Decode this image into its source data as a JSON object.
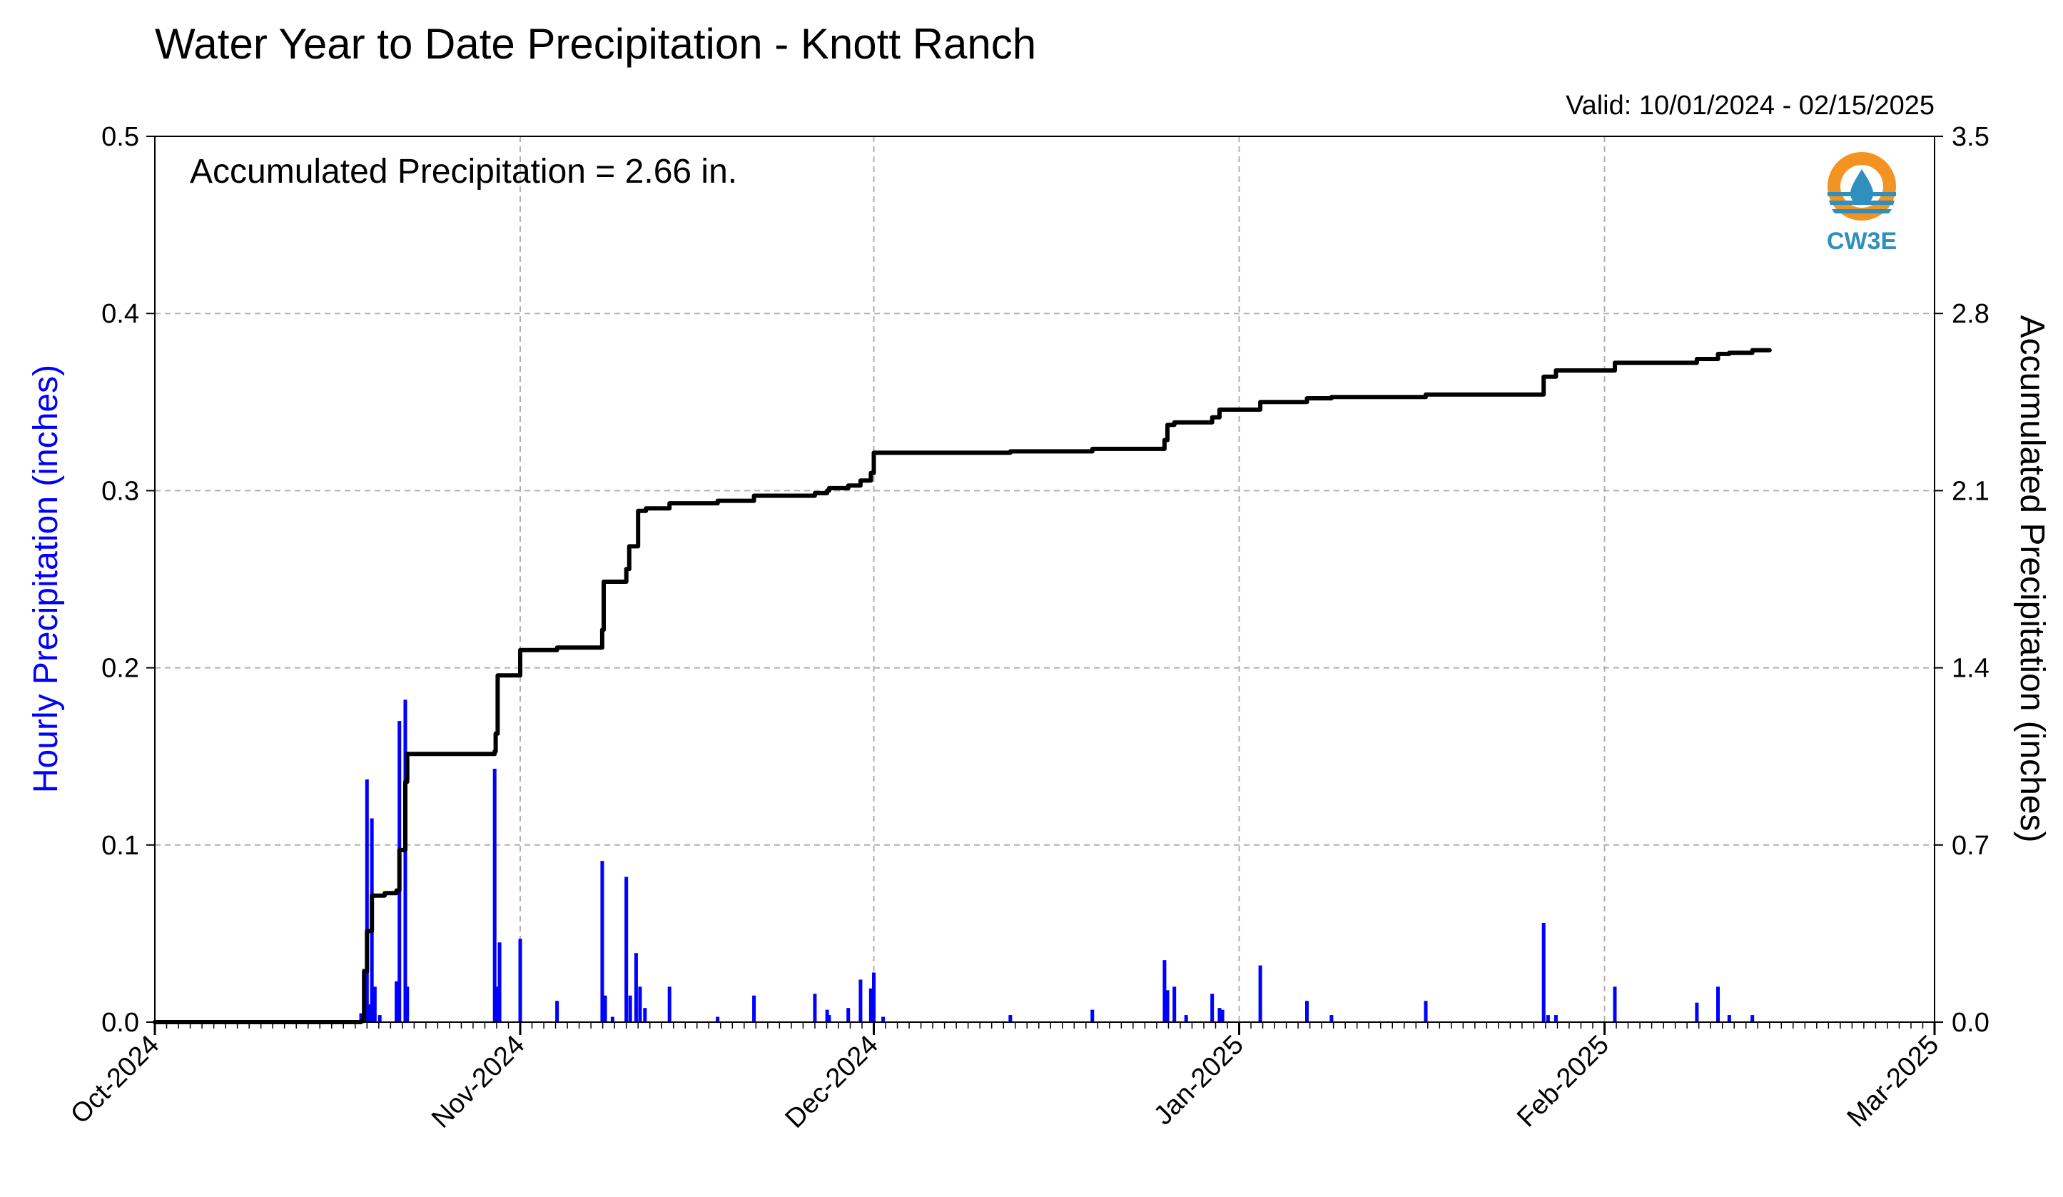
{
  "chart_data": {
    "type": "bar+line",
    "title": "Water Year to Date Precipitation - Knott Ranch",
    "subtitle": "Valid: 10/01/2024 - 02/15/2025",
    "annotation": "Accumulated Precipitation = 2.66 in.",
    "logo_text": "CW3E",
    "ylabel_left": "Hourly Precipitation (inches)",
    "ylabel_right": "Accumulated Precipitation (inches)",
    "xlim": [
      "2024-10-01",
      "2025-03-01"
    ],
    "ylim_left": [
      0,
      0.5
    ],
    "ylim_right": [
      0,
      3.5
    ],
    "yticks_left": [
      "0.0",
      "0.1",
      "0.2",
      "0.3",
      "0.4",
      "0.5"
    ],
    "yticks_right": [
      "0.0",
      "0.7",
      "1.4",
      "2.1",
      "2.8",
      "3.5"
    ],
    "xtick_labels": [
      {
        "date": "2024-10-01",
        "label": "Oct-2024"
      },
      {
        "date": "2024-11-01",
        "label": "Nov-2024"
      },
      {
        "date": "2024-12-01",
        "label": "Dec-2024"
      },
      {
        "date": "2025-01-01",
        "label": "Jan-2025"
      },
      {
        "date": "2025-02-01",
        "label": "Feb-2025"
      },
      {
        "date": "2025-03-01",
        "label": "Mar-2025"
      }
    ],
    "grid": true,
    "colors": {
      "hourly": "#0000ff",
      "accumulated": "#000000",
      "grid": "#b0b0b0",
      "logo_orange": "#f39321",
      "logo_blue": "#2f8fbd"
    },
    "series": [
      {
        "type": "bar",
        "axis": "left",
        "points": [
          [
            "2024-10-18T12:00",
            0.005
          ],
          [
            "2024-10-18T18:00",
            0.03
          ],
          [
            "2024-10-19T00:00",
            0.137
          ],
          [
            "2024-10-19T06:00",
            0.01
          ],
          [
            "2024-10-19T10:00",
            0.115
          ],
          [
            "2024-10-19T16:00",
            0.02
          ],
          [
            "2024-10-20T02:00",
            0.004
          ],
          [
            "2024-10-21T12:00",
            0.023
          ],
          [
            "2024-10-21T18:00",
            0.17
          ],
          [
            "2024-10-22T06:00",
            0.182
          ],
          [
            "2024-10-22T10:00",
            0.02
          ],
          [
            "2024-10-29T20:00",
            0.143
          ],
          [
            "2024-10-30T02:00",
            0.02
          ],
          [
            "2024-10-30T06:00",
            0.045
          ],
          [
            "2024-11-01T00:00",
            0.047
          ],
          [
            "2024-11-04T03:00",
            0.012
          ],
          [
            "2024-11-07T23:00",
            0.091
          ],
          [
            "2024-11-08T05:00",
            0.015
          ],
          [
            "2024-11-08T20:00",
            0.003
          ],
          [
            "2024-11-10T00:00",
            0.082
          ],
          [
            "2024-11-10T08:00",
            0.015
          ],
          [
            "2024-11-10T20:00",
            0.039
          ],
          [
            "2024-11-11T04:00",
            0.02
          ],
          [
            "2024-11-11T14:00",
            0.008
          ],
          [
            "2024-11-13T16:00",
            0.02
          ],
          [
            "2024-11-17T18:00",
            0.003
          ],
          [
            "2024-11-20T20:00",
            0.015
          ],
          [
            "2024-11-26T00:00",
            0.016
          ],
          [
            "2024-11-27T01:00",
            0.007
          ],
          [
            "2024-11-27T05:00",
            0.004
          ],
          [
            "2024-11-28T20:00",
            0.008
          ],
          [
            "2024-11-29T21:00",
            0.024
          ],
          [
            "2024-11-30T18:00",
            0.019
          ],
          [
            "2024-12-01T00:00",
            0.028
          ],
          [
            "2024-12-01T19:00",
            0.003
          ],
          [
            "2024-12-12T14:00",
            0.004
          ],
          [
            "2024-12-19T13:00",
            0.007
          ],
          [
            "2024-12-25T16:00",
            0.035
          ],
          [
            "2024-12-25T22:00",
            0.018
          ],
          [
            "2024-12-26T12:00",
            0.02
          ],
          [
            "2024-12-27T12:00",
            0.004
          ],
          [
            "2024-12-29T17:00",
            0.016
          ],
          [
            "2024-12-30T08:00",
            0.008
          ],
          [
            "2024-12-30T14:00",
            0.007
          ],
          [
            "2025-01-02T19:00",
            0.032
          ],
          [
            "2025-01-06T18:00",
            0.012
          ],
          [
            "2025-01-08T20:00",
            0.004
          ],
          [
            "2025-01-16T20:00",
            0.012
          ],
          [
            "2025-01-26T20:00",
            0.056
          ],
          [
            "2025-01-27T05:00",
            0.004
          ],
          [
            "2025-01-27T21:00",
            0.004
          ],
          [
            "2025-02-01T21:00",
            0.02
          ],
          [
            "2025-02-08T20:00",
            0.011
          ],
          [
            "2025-02-10T15:00",
            0.02
          ],
          [
            "2025-02-11T14:00",
            0.004
          ],
          [
            "2025-02-13T13:00",
            0.004
          ]
        ]
      },
      {
        "type": "line",
        "axis": "right",
        "step": true,
        "points": [
          [
            "2024-10-01T00:00",
            0.0
          ],
          [
            "2024-10-18T12:00",
            0.005
          ],
          [
            "2024-10-18T18:00",
            0.2
          ],
          [
            "2024-10-19T00:00",
            0.36
          ],
          [
            "2024-10-19T10:00",
            0.5
          ],
          [
            "2024-10-20T12:00",
            0.51
          ],
          [
            "2024-10-21T12:00",
            0.52
          ],
          [
            "2024-10-21T18:00",
            0.68
          ],
          [
            "2024-10-22T06:00",
            0.95
          ],
          [
            "2024-10-22T10:00",
            1.06
          ],
          [
            "2024-10-29T20:00",
            1.07
          ],
          [
            "2024-10-29T22:00",
            1.14
          ],
          [
            "2024-10-30T02:00",
            1.37
          ],
          [
            "2024-11-01T00:00",
            1.47
          ],
          [
            "2024-11-04T03:00",
            1.48
          ],
          [
            "2024-11-07T23:00",
            1.55
          ],
          [
            "2024-11-08T02:00",
            1.74
          ],
          [
            "2024-11-10T00:00",
            1.79
          ],
          [
            "2024-11-10T06:00",
            1.88
          ],
          [
            "2024-11-11T00:00",
            2.02
          ],
          [
            "2024-11-11T16:00",
            2.03
          ],
          [
            "2024-11-13T16:00",
            2.05
          ],
          [
            "2024-11-17T18:00",
            2.06
          ],
          [
            "2024-11-20T20:00",
            2.08
          ],
          [
            "2024-11-26T00:00",
            2.09
          ],
          [
            "2024-11-27T01:00",
            2.1
          ],
          [
            "2024-11-27T05:00",
            2.11
          ],
          [
            "2024-11-28T20:00",
            2.12
          ],
          [
            "2024-11-29T21:00",
            2.14
          ],
          [
            "2024-11-30T18:00",
            2.17
          ],
          [
            "2024-12-01T00:00",
            2.25
          ],
          [
            "2024-12-12T14:00",
            2.255
          ],
          [
            "2024-12-19T13:00",
            2.265
          ],
          [
            "2024-12-25T16:00",
            2.3
          ],
          [
            "2024-12-25T22:00",
            2.36
          ],
          [
            "2024-12-26T12:00",
            2.37
          ],
          [
            "2024-12-29T17:00",
            2.39
          ],
          [
            "2024-12-30T08:00",
            2.42
          ],
          [
            "2025-01-02T19:00",
            2.45
          ],
          [
            "2025-01-06T18:00",
            2.465
          ],
          [
            "2025-01-08T20:00",
            2.47
          ],
          [
            "2025-01-16T20:00",
            2.48
          ],
          [
            "2025-01-26T20:00",
            2.55
          ],
          [
            "2025-01-27T21:00",
            2.575
          ],
          [
            "2025-02-01T21:00",
            2.605
          ],
          [
            "2025-02-08T20:00",
            2.62
          ],
          [
            "2025-02-10T15:00",
            2.64
          ],
          [
            "2025-02-11T14:00",
            2.645
          ],
          [
            "2025-02-13T13:00",
            2.655
          ],
          [
            "2025-02-15T00:00",
            2.655
          ]
        ]
      }
    ]
  }
}
